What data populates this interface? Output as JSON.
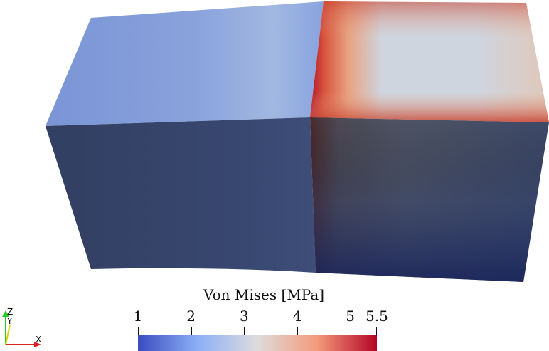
{
  "colorbar": {
    "title": "Von Mises [MPa]",
    "min": 1,
    "max": 5.5,
    "ticks": [
      "1",
      "2",
      "3",
      "4",
      "5",
      "5.5"
    ],
    "colors": [
      "#3b4cc0",
      "#8caff7",
      "#dddcdc",
      "#f49a7b",
      "#b40426"
    ]
  },
  "axes": {
    "x": "X",
    "y": "Y",
    "z": "Z"
  },
  "colors": {
    "background": "#ffffff",
    "low": "#3b4cc0",
    "high": "#b40426"
  }
}
